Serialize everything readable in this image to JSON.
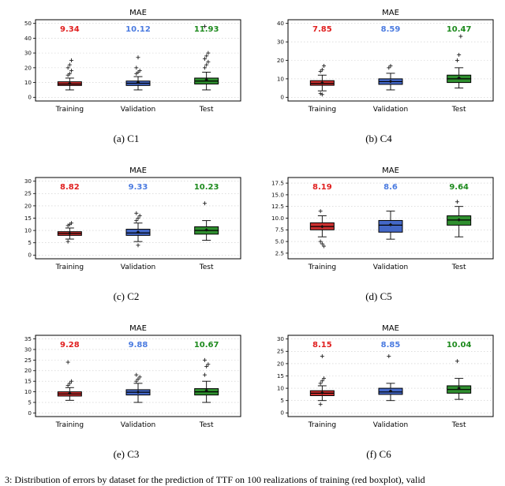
{
  "page": {
    "bottom_caption": "3: Distribution of errors by dataset for the prediction of TTF on 100 realizations of training (red boxplot), valid"
  },
  "chart_data": [
    {
      "type": "box",
      "title": "MAE",
      "caption": "(a) C1",
      "categories": [
        "Training",
        "Validation",
        "Test"
      ],
      "box_colors": [
        "#cd2f2f",
        "#4468c8",
        "#2f8f2f"
      ],
      "label_colors": [
        "#e01f1f",
        "#4b7be0",
        "#1d8a1d"
      ],
      "mean_labels": [
        "9.34",
        "10.12",
        "11.93"
      ],
      "ylim": [
        -2.5,
        52.5
      ],
      "yticks": [
        0,
        10,
        20,
        30,
        40,
        50
      ],
      "ytick_labels": [
        "0",
        "10",
        "20",
        "30",
        "40",
        "50"
      ],
      "grid": true,
      "legend": "none",
      "boxes": [
        {
          "mean": 9.34,
          "med": 9,
          "q1": 8,
          "q3": 10.5,
          "whislo": 5,
          "whishi": 13,
          "fliers": [
            15,
            16,
            18,
            20,
            22,
            25
          ]
        },
        {
          "mean": 10.12,
          "med": 9.5,
          "q1": 8,
          "q3": 11,
          "whislo": 5,
          "whishi": 14,
          "fliers": [
            16,
            17,
            18,
            20,
            27
          ]
        },
        {
          "mean": 11.93,
          "med": 11,
          "q1": 9,
          "q3": 13,
          "whislo": 5,
          "whishi": 17,
          "fliers": [
            20,
            22,
            24,
            26,
            28,
            30,
            48
          ]
        }
      ]
    },
    {
      "type": "box",
      "title": "MAE",
      "caption": "(b) C4",
      "categories": [
        "Training",
        "Validation",
        "Test"
      ],
      "box_colors": [
        "#cd2f2f",
        "#4468c8",
        "#2f8f2f"
      ],
      "label_colors": [
        "#e01f1f",
        "#4b7be0",
        "#1d8a1d"
      ],
      "mean_labels": [
        "7.85",
        "8.59",
        "10.47"
      ],
      "ylim": [
        -2,
        42
      ],
      "yticks": [
        0,
        10,
        20,
        30,
        40
      ],
      "ytick_labels": [
        "0",
        "10",
        "20",
        "30",
        "40"
      ],
      "grid": true,
      "legend": "none",
      "boxes": [
        {
          "mean": 7.85,
          "med": 7.5,
          "q1": 6.5,
          "q3": 9,
          "whislo": 3.5,
          "whishi": 12,
          "fliers": [
            14,
            15,
            17,
            2,
            1.5
          ]
        },
        {
          "mean": 8.59,
          "med": 8.5,
          "q1": 7,
          "q3": 10,
          "whislo": 4,
          "whishi": 13,
          "fliers": [
            16,
            17
          ]
        },
        {
          "mean": 10.47,
          "med": 10,
          "q1": 8,
          "q3": 12,
          "whislo": 5,
          "whishi": 16,
          "fliers": [
            20,
            23,
            33
          ]
        }
      ]
    },
    {
      "type": "box",
      "title": "MAE",
      "caption": "(c) C2",
      "categories": [
        "Training",
        "Validation",
        "Test"
      ],
      "box_colors": [
        "#cd2f2f",
        "#4468c8",
        "#2f8f2f"
      ],
      "label_colors": [
        "#e01f1f",
        "#4b7be0",
        "#1d8a1d"
      ],
      "mean_labels": [
        "8.82",
        "9.33",
        "10.23"
      ],
      "ylim": [
        -1.5,
        31.5
      ],
      "yticks": [
        0,
        5,
        10,
        15,
        20,
        25,
        30
      ],
      "ytick_labels": [
        "0",
        "5",
        "10",
        "15",
        "20",
        "25",
        "30"
      ],
      "grid": true,
      "legend": "none",
      "boxes": [
        {
          "mean": 8.82,
          "med": 8.8,
          "q1": 8,
          "q3": 9.5,
          "whislo": 6.5,
          "whishi": 11,
          "fliers": [
            12,
            12.5,
            13,
            5.5
          ]
        },
        {
          "mean": 9.33,
          "med": 9,
          "q1": 8,
          "q3": 10.5,
          "whislo": 5.5,
          "whishi": 13,
          "fliers": [
            14,
            15,
            16,
            17,
            4
          ]
        },
        {
          "mean": 10.23,
          "med": 10,
          "q1": 8.5,
          "q3": 11.5,
          "whislo": 6,
          "whishi": 14,
          "fliers": [
            21
          ]
        }
      ]
    },
    {
      "type": "box",
      "title": "MAE",
      "caption": "(d) C5",
      "categories": [
        "Training",
        "Validation",
        "Test"
      ],
      "box_colors": [
        "#cd2f2f",
        "#4468c8",
        "#2f8f2f"
      ],
      "label_colors": [
        "#e01f1f",
        "#4b7be0",
        "#1d8a1d"
      ],
      "mean_labels": [
        "8.19",
        "8.6",
        "9.64"
      ],
      "ylim": [
        1.3,
        18.7
      ],
      "yticks": [
        2.5,
        5,
        7.5,
        10,
        12.5,
        15,
        17.5
      ],
      "ytick_labels": [
        "2.5",
        "5.0",
        "7.5",
        "10.0",
        "12.5",
        "15.0",
        "17.5"
      ],
      "grid": true,
      "legend": "none",
      "boxes": [
        {
          "mean": 8.19,
          "med": 8.2,
          "q1": 7.5,
          "q3": 9,
          "whislo": 6,
          "whishi": 10.5,
          "fliers": [
            5,
            4.5,
            4,
            11.5
          ]
        },
        {
          "mean": 8.6,
          "med": 8.5,
          "q1": 7,
          "q3": 9.5,
          "whislo": 5.5,
          "whishi": 11.5,
          "fliers": []
        },
        {
          "mean": 9.64,
          "med": 9.6,
          "q1": 8.5,
          "q3": 10.5,
          "whislo": 6,
          "whishi": 12.5,
          "fliers": [
            13.5
          ]
        }
      ]
    },
    {
      "type": "box",
      "title": "MAE",
      "caption": "(e) C3",
      "categories": [
        "Training",
        "Validation",
        "Test"
      ],
      "box_colors": [
        "#cd2f2f",
        "#4468c8",
        "#2f8f2f"
      ],
      "label_colors": [
        "#e01f1f",
        "#4b7be0",
        "#1d8a1d"
      ],
      "mean_labels": [
        "9.28",
        "9.88",
        "10.67"
      ],
      "ylim": [
        -1.7,
        36.7
      ],
      "yticks": [
        0,
        5,
        10,
        15,
        20,
        25,
        30,
        35
      ],
      "ytick_labels": [
        "0",
        "5",
        "10",
        "15",
        "20",
        "25",
        "30",
        "35"
      ],
      "grid": true,
      "legend": "none",
      "boxes": [
        {
          "mean": 9.28,
          "med": 9,
          "q1": 8,
          "q3": 10,
          "whislo": 6,
          "whishi": 12,
          "fliers": [
            13,
            14,
            15,
            24
          ]
        },
        {
          "mean": 9.88,
          "med": 9.8,
          "q1": 8.5,
          "q3": 11,
          "whislo": 5,
          "whishi": 14,
          "fliers": [
            15,
            16,
            17,
            18
          ]
        },
        {
          "mean": 10.67,
          "med": 10,
          "q1": 8.5,
          "q3": 11.5,
          "whislo": 5,
          "whishi": 15,
          "fliers": [
            18,
            22,
            23,
            25
          ]
        }
      ]
    },
    {
      "type": "box",
      "title": "MAE",
      "caption": "(f) C6",
      "categories": [
        "Training",
        "Validation",
        "Test"
      ],
      "box_colors": [
        "#cd2f2f",
        "#4468c8",
        "#2f8f2f"
      ],
      "label_colors": [
        "#e01f1f",
        "#4b7be0",
        "#1d8a1d"
      ],
      "mean_labels": [
        "8.15",
        "8.85",
        "10.04"
      ],
      "ylim": [
        -1.5,
        31.5
      ],
      "yticks": [
        0,
        5,
        10,
        15,
        20,
        25,
        30
      ],
      "ytick_labels": [
        "0",
        "5",
        "10",
        "15",
        "20",
        "25",
        "30"
      ],
      "grid": true,
      "legend": "none",
      "boxes": [
        {
          "mean": 8.15,
          "med": 8,
          "q1": 7,
          "q3": 9,
          "whislo": 5,
          "whishi": 11,
          "fliers": [
            12,
            13,
            14,
            3.5,
            23
          ]
        },
        {
          "mean": 8.85,
          "med": 8.5,
          "q1": 7.5,
          "q3": 10,
          "whislo": 5,
          "whishi": 12,
          "fliers": [
            23
          ]
        },
        {
          "mean": 10.04,
          "med": 9.5,
          "q1": 8,
          "q3": 11,
          "whislo": 5.5,
          "whishi": 14,
          "fliers": [
            21
          ]
        }
      ]
    }
  ]
}
